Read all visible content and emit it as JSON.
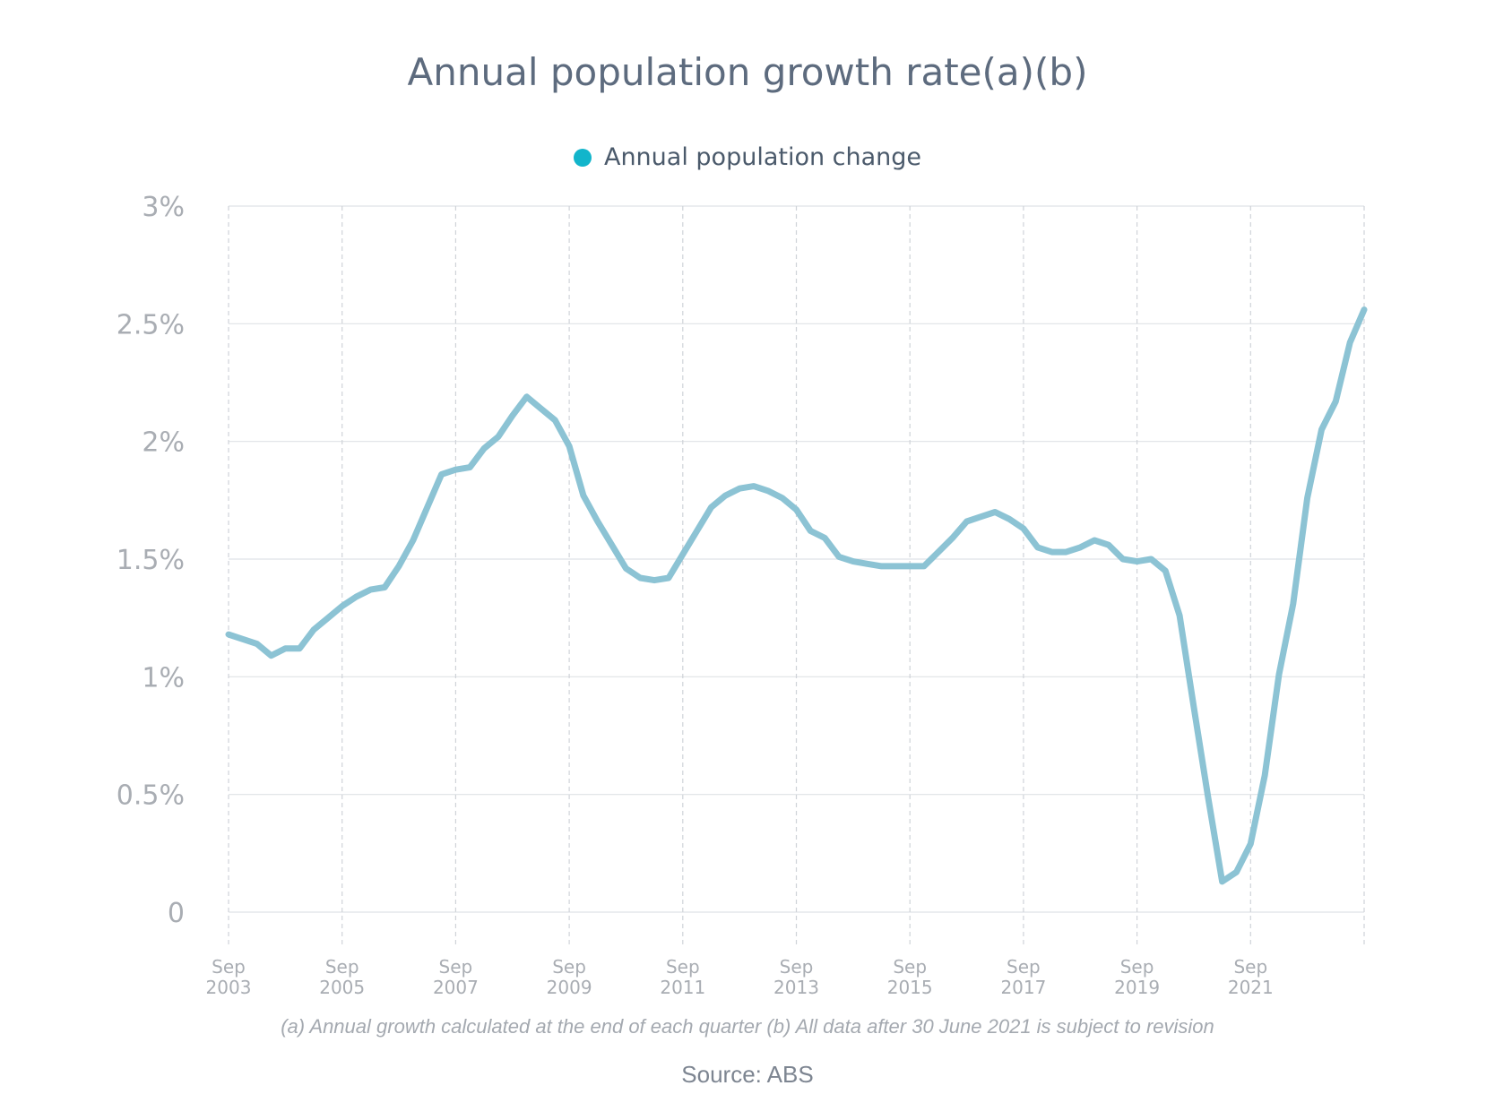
{
  "chart_data": {
    "type": "line",
    "title": "Annual population growth rate(a)(b)",
    "xlabel": "",
    "ylabel": "",
    "y_ticks": [
      "0",
      "0.5%",
      "1%",
      "1.5%",
      "2%",
      "2.5%",
      "3%"
    ],
    "ylim": [
      0,
      3
    ],
    "x_tick_labels": [
      [
        "Sep",
        "2003"
      ],
      [
        "Sep",
        "2005"
      ],
      [
        "Sep",
        "2007"
      ],
      [
        "Sep",
        "2009"
      ],
      [
        "Sep",
        "2011"
      ],
      [
        "Sep",
        "2013"
      ],
      [
        "Sep",
        "2015"
      ],
      [
        "Sep",
        "2017"
      ],
      [
        "Sep",
        "2019"
      ],
      [
        "Sep",
        "2021"
      ]
    ],
    "x_tick_years": [
      2003.75,
      2005.75,
      2007.75,
      2009.75,
      2011.75,
      2013.75,
      2015.75,
      2017.75,
      2019.75,
      2021.75
    ],
    "xlim": [
      2003.75,
      2023.75
    ],
    "grid": true,
    "legend_position": "top-center",
    "line_color": "#8cc3d4",
    "legend_color": "#12b5cb",
    "series": [
      {
        "name": "Annual population change",
        "x": [
          2003.75,
          2004.0,
          2004.25,
          2004.5,
          2004.75,
          2005.0,
          2005.25,
          2005.5,
          2005.75,
          2006.0,
          2006.25,
          2006.5,
          2006.75,
          2007.0,
          2007.25,
          2007.5,
          2007.75,
          2008.0,
          2008.25,
          2008.5,
          2008.75,
          2009.0,
          2009.25,
          2009.5,
          2009.75,
          2010.0,
          2010.25,
          2010.5,
          2010.75,
          2011.0,
          2011.25,
          2011.5,
          2011.75,
          2012.0,
          2012.25,
          2012.5,
          2012.75,
          2013.0,
          2013.25,
          2013.5,
          2013.75,
          2014.0,
          2014.25,
          2014.5,
          2014.75,
          2015.0,
          2015.25,
          2015.5,
          2015.75,
          2016.0,
          2016.25,
          2016.5,
          2016.75,
          2017.0,
          2017.25,
          2017.5,
          2017.75,
          2018.0,
          2018.25,
          2018.5,
          2018.75,
          2019.0,
          2019.25,
          2019.5,
          2019.75,
          2020.0,
          2020.25,
          2020.5,
          2020.75,
          2021.0,
          2021.25,
          2021.5,
          2021.75,
          2022.0,
          2022.25,
          2022.5,
          2022.75,
          2023.0,
          2023.25,
          2023.5,
          2023.75
        ],
        "y": [
          1.18,
          1.16,
          1.14,
          1.09,
          1.12,
          1.12,
          1.2,
          1.25,
          1.3,
          1.34,
          1.37,
          1.38,
          1.47,
          1.58,
          1.72,
          1.86,
          1.88,
          1.89,
          1.97,
          2.02,
          2.11,
          2.19,
          2.14,
          2.09,
          1.98,
          1.77,
          1.66,
          1.56,
          1.46,
          1.42,
          1.41,
          1.42,
          1.52,
          1.62,
          1.72,
          1.77,
          1.8,
          1.81,
          1.79,
          1.76,
          1.71,
          1.62,
          1.59,
          1.51,
          1.49,
          1.48,
          1.47,
          1.47,
          1.47,
          1.47,
          1.53,
          1.59,
          1.66,
          1.68,
          1.7,
          1.67,
          1.63,
          1.55,
          1.53,
          1.53,
          1.55,
          1.58,
          1.56,
          1.5,
          1.49,
          1.5,
          1.45,
          1.26,
          0.87,
          0.49,
          0.13,
          0.17,
          0.29,
          0.58,
          1.01,
          1.31,
          1.76,
          2.05,
          2.17,
          2.42,
          2.56
        ]
      }
    ],
    "footnote": "(a) Annual growth calculated at the end of each quarter (b) All data after 30 June 2021 is subject to revision",
    "source": "Source: ABS"
  }
}
